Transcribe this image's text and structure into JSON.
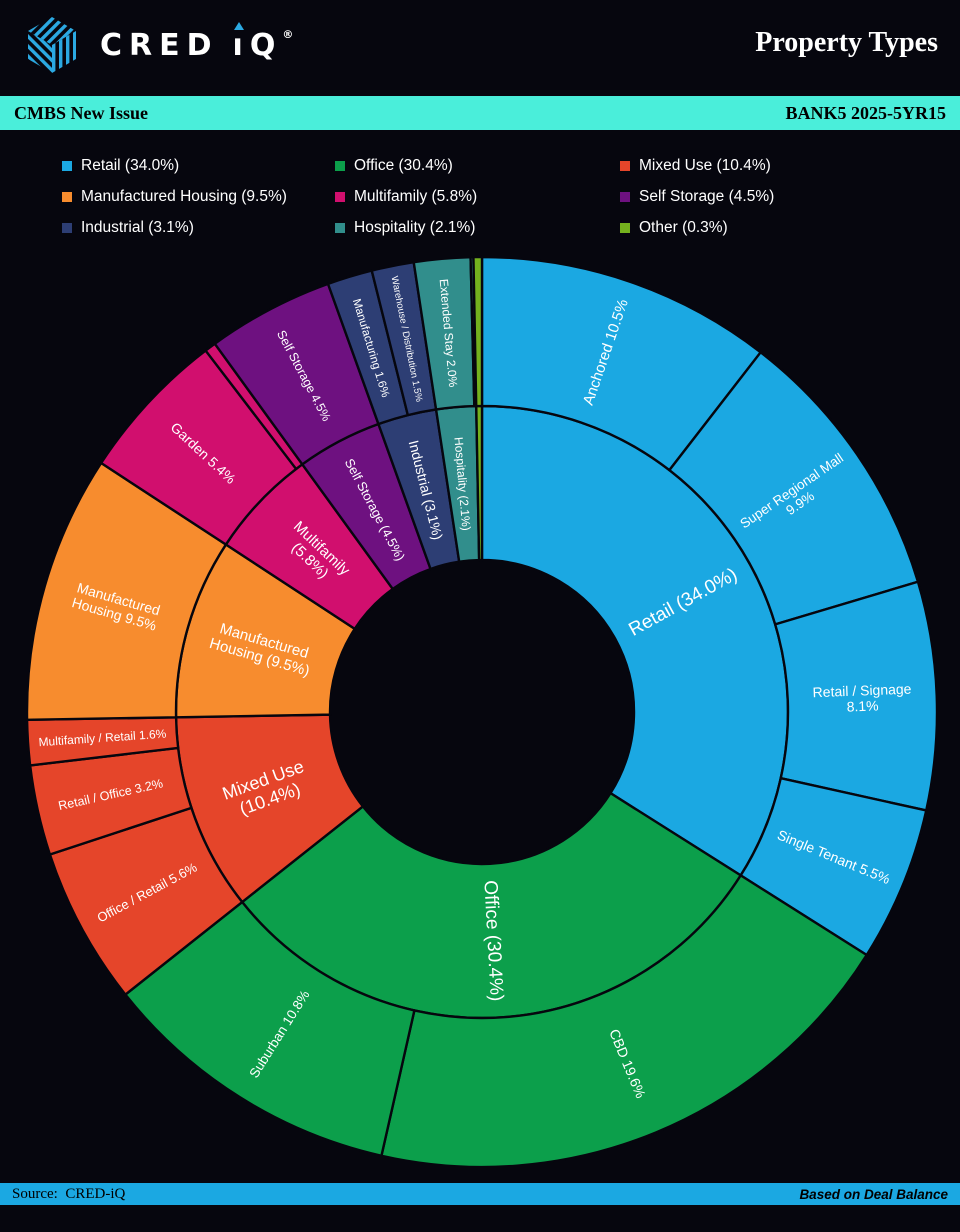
{
  "theme": {
    "background": "#06060E",
    "accent_cyan": "#4AEEDA",
    "accent_blue": "#1BA8E2",
    "logo_blue": "#2BA9E2",
    "text_light": "#FFFFFF",
    "text_dark": "#000000"
  },
  "header": {
    "brand_cred": "CRED",
    "brand_i_glyph": "ı",
    "brand_q": "Q",
    "reg": "®",
    "title": "Property Types"
  },
  "subheader": {
    "left": "CMBS New Issue",
    "right": "BANK5 2025-5YR15"
  },
  "legend": {
    "items": [
      {
        "label": "Retail (34.0%)",
        "color": "#1BA8E2"
      },
      {
        "label": "Office (30.4%)",
        "color": "#0C9F4B"
      },
      {
        "label": "Mixed Use (10.4%)",
        "color": "#E5452A"
      },
      {
        "label": "Manufactured Housing (9.5%)",
        "color": "#F78C2E"
      },
      {
        "label": "Multifamily (5.8%)",
        "color": "#D10F6E"
      },
      {
        "label": "Self Storage (4.5%)",
        "color": "#6E1180"
      },
      {
        "label": "Industrial (3.1%)",
        "color": "#2D3E74"
      },
      {
        "label": "Hospitality (2.1%)",
        "color": "#318E8C"
      },
      {
        "label": "Other (0.3%)",
        "color": "#74B11E"
      }
    ]
  },
  "footer": {
    "source_label": "Source:",
    "source_value": "CRED-iQ",
    "note": "Based on Deal Balance"
  },
  "chart_data": {
    "type": "sunburst",
    "title": "Property Types",
    "deal": "BANK5 2025-5YR15",
    "unit": "%",
    "rings": [
      "property_type",
      "property_subtype"
    ],
    "start_angle_deg": 0,
    "direction": "clockwise",
    "segments": [
      {
        "name": "Retail",
        "value": 34.0,
        "color": "#1BA8E2",
        "label": "Retail (34.0%)",
        "fs": 19,
        "children": [
          {
            "name": "Anchored",
            "value": 10.5,
            "label": "Anchored 10.5%",
            "fs": 15
          },
          {
            "name": "Super Regional Mall",
            "value": 9.9,
            "label": "Super Regional Mall\n9.9%",
            "fs": 13.5
          },
          {
            "name": "Retail / Signage",
            "value": 8.1,
            "label": "Retail / Signage\n8.1%",
            "fs": 14
          },
          {
            "name": "Single Tenant",
            "value": 5.5,
            "label": "Single Tenant 5.5%",
            "fs": 14
          }
        ]
      },
      {
        "name": "Office",
        "value": 30.4,
        "color": "#0C9F4B",
        "label": "Office (30.4%)",
        "fs": 19,
        "children": [
          {
            "name": "CBD",
            "value": 19.6,
            "label": "CBD 19.6%",
            "fs": 14
          },
          {
            "name": "Suburban",
            "value": 10.8,
            "label": "Suburban 10.8%",
            "fs": 13.5
          }
        ]
      },
      {
        "name": "Mixed Use",
        "value": 10.4,
        "color": "#E5452A",
        "label": "Mixed Use\n(10.4%)",
        "fs": 18,
        "children": [
          {
            "name": "Office / Retail",
            "value": 5.6,
            "label": "Office / Retail 5.6%",
            "fs": 13
          },
          {
            "name": "Retail / Office",
            "value": 3.2,
            "label": "Retail / Office 3.2%",
            "fs": 12.5
          },
          {
            "name": "Multifamily / Retail",
            "value": 1.6,
            "label": "Multifamily / Retail 1.6%",
            "fs": 12
          }
        ]
      },
      {
        "name": "Manufactured Housing",
        "value": 9.5,
        "color": "#F78C2E",
        "label": "Manufactured\nHousing (9.5%)",
        "fs": 15,
        "children": [
          {
            "name": "Manufactured Housing",
            "value": 9.5,
            "label": "Manufactured\nHousing 9.5%",
            "fs": 14
          }
        ]
      },
      {
        "name": "Multifamily",
        "value": 5.8,
        "color": "#D10F6E",
        "label": "Multifamily\n(5.8%)",
        "fs": 15,
        "children": [
          {
            "name": "Garden",
            "value": 5.4,
            "label": "Garden 5.4%",
            "fs": 14
          },
          {
            "name": "",
            "value": 0.4,
            "label": "",
            "fs": 0
          }
        ]
      },
      {
        "name": "Self Storage",
        "value": 4.5,
        "color": "#6E1180",
        "label": "Self Storage (4.5%)",
        "fs": 13,
        "children": [
          {
            "name": "Self Storage",
            "value": 4.5,
            "label": "Self Storage 4.5%",
            "fs": 12.5
          }
        ]
      },
      {
        "name": "Industrial",
        "value": 3.1,
        "color": "#2D3E74",
        "label": "Industrial (3.1%)",
        "fs": 14,
        "children": [
          {
            "name": "Manufacturing",
            "value": 1.6,
            "label": "Manufacturing 1.6%",
            "fs": 11.5
          },
          {
            "name": "Warehouse / Distribution",
            "value": 1.5,
            "label": "Warehouse / Distribution 1.5%",
            "fs": 9.5
          }
        ]
      },
      {
        "name": "Hospitality",
        "value": 2.1,
        "color": "#318E8C",
        "label": "Hospitality (2.1%)",
        "fs": 12,
        "children": [
          {
            "name": "Extended Stay",
            "value": 2.0,
            "label": "Extended Stay 2.0%",
            "fs": 12
          },
          {
            "name": "",
            "value": 0.1,
            "label": "",
            "fs": 0
          }
        ]
      },
      {
        "name": "Other",
        "value": 0.3,
        "color": "#74B11E",
        "label": "",
        "fs": 0,
        "children": [
          {
            "name": "Other",
            "value": 0.3,
            "label": "",
            "fs": 0
          }
        ]
      }
    ]
  }
}
